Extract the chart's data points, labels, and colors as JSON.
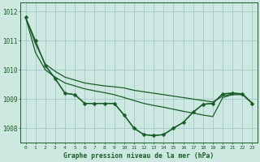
{
  "background_color": "#cce8e0",
  "grid_color": "#aacccc",
  "line_color": "#1a5c28",
  "title": "Graphe pression niveau de la mer (hPa)",
  "xlim": [
    -0.5,
    23.5
  ],
  "ylim": [
    1007.5,
    1012.3
  ],
  "yticks": [
    1008,
    1009,
    1010,
    1011,
    1012
  ],
  "xticks": [
    0,
    1,
    2,
    3,
    4,
    5,
    6,
    7,
    8,
    9,
    10,
    11,
    12,
    13,
    14,
    15,
    16,
    17,
    18,
    19,
    20,
    21,
    22,
    23
  ],
  "series": [
    {
      "x": [
        0,
        1,
        2,
        3,
        4,
        5,
        6,
        7,
        8,
        9,
        10,
        11,
        12,
        13,
        14,
        15,
        16,
        17,
        18,
        19,
        20,
        21,
        22,
        23
      ],
      "y": [
        1011.8,
        1011.0,
        1010.15,
        1009.7,
        1009.2,
        1009.15,
        1008.85,
        1008.85,
        1008.85,
        1008.85,
        1008.45,
        1008.0,
        1007.78,
        1007.75,
        1007.78,
        1008.0,
        1008.2,
        1008.55,
        1008.82,
        1008.85,
        1009.18,
        1009.2,
        1009.18,
        1008.85
      ],
      "with_markers": true,
      "linewidth": 1.0,
      "markersize": 2.5
    },
    {
      "x": [
        0,
        1,
        2,
        3,
        4,
        5,
        6,
        7,
        8,
        9,
        10,
        11,
        12,
        13,
        14,
        15,
        16,
        17,
        18,
        19,
        20,
        21,
        22,
        23
      ],
      "y": [
        1011.8,
        1010.9,
        1010.2,
        1009.95,
        1009.75,
        1009.65,
        1009.55,
        1009.5,
        1009.45,
        1009.42,
        1009.38,
        1009.3,
        1009.25,
        1009.2,
        1009.15,
        1009.1,
        1009.05,
        1009.0,
        1008.95,
        1008.9,
        1009.1,
        1009.18,
        1009.18,
        1008.85
      ],
      "with_markers": false,
      "linewidth": 0.9
    },
    {
      "x": [
        0,
        1,
        2,
        3,
        4,
        5,
        6,
        7,
        8,
        9,
        10,
        11,
        12,
        13,
        14,
        15,
        16,
        17,
        18,
        19,
        20,
        21,
        22,
        23
      ],
      "y": [
        1011.8,
        1010.6,
        1010.0,
        1009.75,
        1009.55,
        1009.45,
        1009.35,
        1009.28,
        1009.22,
        1009.15,
        1009.05,
        1008.95,
        1008.85,
        1008.78,
        1008.72,
        1008.65,
        1008.58,
        1008.52,
        1008.45,
        1008.4,
        1009.05,
        1009.15,
        1009.15,
        1008.85
      ],
      "with_markers": false,
      "linewidth": 0.9
    },
    {
      "x": [
        2,
        3,
        4,
        5,
        6,
        7,
        8,
        9,
        10,
        11,
        12,
        13,
        14,
        15,
        16,
        17,
        18,
        19,
        20,
        21,
        22,
        23
      ],
      "y": [
        1010.15,
        1009.7,
        1009.2,
        1009.15,
        1008.85,
        1008.85,
        1008.85,
        1008.85,
        1008.45,
        1008.0,
        1007.78,
        1007.75,
        1007.78,
        1008.0,
        1008.2,
        1008.55,
        1008.82,
        1008.85,
        1009.18,
        1009.2,
        1009.18,
        1008.85
      ],
      "with_markers": false,
      "linewidth": 0.9
    }
  ]
}
